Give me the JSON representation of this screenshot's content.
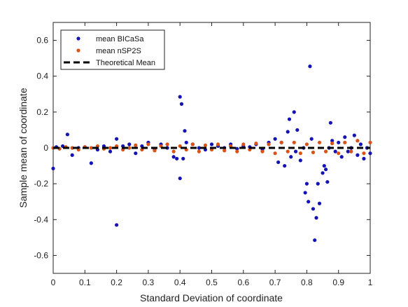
{
  "chart_data": {
    "type": "scatter",
    "xlabel": "Standard Deviation of coordinate",
    "ylabel": "Sample mean of coordinate",
    "xlim": [
      0,
      1
    ],
    "ylim": [
      -0.7,
      0.7
    ],
    "xticks": [
      "0",
      "0.1",
      "0.2",
      "0.3",
      "0.4",
      "0.5",
      "0.6",
      "0.7",
      "0.8",
      "0.9",
      "1"
    ],
    "yticks": [
      "-0.6",
      "-0.4",
      "-0.2",
      "0",
      "0.2",
      "0.4",
      "0.6"
    ],
    "grid": false,
    "legend_position": "top-left",
    "legend": [
      {
        "label": "mean BICaSa",
        "color": "#1414b4",
        "marker": "dot"
      },
      {
        "label": "mean nSP2S",
        "color": "#d95319",
        "marker": "dot"
      },
      {
        "label": "Theoretical Mean",
        "color": "#000000",
        "marker": "dashed-line"
      }
    ],
    "series": [
      {
        "name": "mean BICaSa",
        "color": "#1414b4",
        "points": [
          [
            0.0,
            -0.115
          ],
          [
            0.01,
            0.005
          ],
          [
            0.03,
            0.01
          ],
          [
            0.045,
            0.075
          ],
          [
            0.06,
            -0.04
          ],
          [
            0.08,
            0.0
          ],
          [
            0.1,
            0.005
          ],
          [
            0.12,
            -0.085
          ],
          [
            0.14,
            -0.01
          ],
          [
            0.16,
            0.01
          ],
          [
            0.18,
            -0.02
          ],
          [
            0.2,
            0.05
          ],
          [
            0.2,
            -0.43
          ],
          [
            0.22,
            0.01
          ],
          [
            0.24,
            0.02
          ],
          [
            0.26,
            -0.03
          ],
          [
            0.28,
            0.01
          ],
          [
            0.3,
            0.03
          ],
          [
            0.32,
            -0.01
          ],
          [
            0.34,
            0.02
          ],
          [
            0.36,
            0.0
          ],
          [
            0.38,
            -0.05
          ],
          [
            0.39,
            -0.06
          ],
          [
            0.4,
            0.285
          ],
          [
            0.405,
            0.245
          ],
          [
            0.4,
            -0.17
          ],
          [
            0.415,
            0.095
          ],
          [
            0.41,
            -0.06
          ],
          [
            0.42,
            0.03
          ],
          [
            0.44,
            0.02
          ],
          [
            0.46,
            0.0
          ],
          [
            0.48,
            -0.01
          ],
          [
            0.5,
            0.02
          ],
          [
            0.52,
            0.01
          ],
          [
            0.54,
            0.0
          ],
          [
            0.56,
            0.02
          ],
          [
            0.58,
            -0.005
          ],
          [
            0.6,
            0.01
          ],
          [
            0.62,
            0.005
          ],
          [
            0.64,
            0.02
          ],
          [
            0.66,
            -0.01
          ],
          [
            0.68,
            0.03
          ],
          [
            0.7,
            0.05
          ],
          [
            0.71,
            -0.08
          ],
          [
            0.72,
            0.03
          ],
          [
            0.73,
            -0.1
          ],
          [
            0.74,
            0.09
          ],
          [
            0.745,
            0.16
          ],
          [
            0.75,
            -0.05
          ],
          [
            0.76,
            0.2
          ],
          [
            0.765,
            -0.02
          ],
          [
            0.77,
            0.1
          ],
          [
            0.78,
            -0.07
          ],
          [
            0.79,
            0.0
          ],
          [
            0.795,
            -0.25
          ],
          [
            0.8,
            -0.2
          ],
          [
            0.805,
            -0.3
          ],
          [
            0.81,
            0.455
          ],
          [
            0.815,
            0.05
          ],
          [
            0.82,
            -0.34
          ],
          [
            0.825,
            -0.515
          ],
          [
            0.83,
            -0.39
          ],
          [
            0.835,
            -0.2
          ],
          [
            0.84,
            -0.31
          ],
          [
            0.85,
            -0.14
          ],
          [
            0.855,
            -0.1
          ],
          [
            0.86,
            -0.12
          ],
          [
            0.865,
            -0.19
          ],
          [
            0.87,
            0.0
          ],
          [
            0.875,
            0.14
          ],
          [
            0.88,
            0.04
          ],
          [
            0.89,
            -0.02
          ],
          [
            0.9,
            0.03
          ],
          [
            0.91,
            -0.05
          ],
          [
            0.92,
            0.06
          ],
          [
            0.93,
            -0.02
          ],
          [
            0.94,
            0.0
          ],
          [
            0.95,
            0.07
          ],
          [
            0.96,
            -0.04
          ],
          [
            0.97,
            0.02
          ],
          [
            0.98,
            -0.06
          ],
          [
            0.99,
            0.0
          ],
          [
            1.0,
            -0.03
          ]
        ]
      },
      {
        "name": "mean nSP2S",
        "color": "#d95319",
        "points": [
          [
            0.0,
            0.0
          ],
          [
            0.02,
            -0.005
          ],
          [
            0.04,
            0.005
          ],
          [
            0.06,
            0.0
          ],
          [
            0.08,
            -0.01
          ],
          [
            0.1,
            0.005
          ],
          [
            0.12,
            0.0
          ],
          [
            0.14,
            0.01
          ],
          [
            0.16,
            -0.005
          ],
          [
            0.18,
            0.0
          ],
          [
            0.2,
            0.01
          ],
          [
            0.22,
            -0.01
          ],
          [
            0.24,
            0.0
          ],
          [
            0.26,
            0.015
          ],
          [
            0.28,
            -0.01
          ],
          [
            0.3,
            0.02
          ],
          [
            0.32,
            -0.015
          ],
          [
            0.34,
            0.01
          ],
          [
            0.36,
            0.02
          ],
          [
            0.38,
            -0.02
          ],
          [
            0.4,
            0.01
          ],
          [
            0.42,
            -0.01
          ],
          [
            0.44,
            0.02
          ],
          [
            0.46,
            -0.02
          ],
          [
            0.48,
            0.015
          ],
          [
            0.5,
            -0.01
          ],
          [
            0.52,
            0.02
          ],
          [
            0.54,
            -0.015
          ],
          [
            0.56,
            0.01
          ],
          [
            0.58,
            -0.02
          ],
          [
            0.6,
            0.02
          ],
          [
            0.62,
            -0.01
          ],
          [
            0.64,
            0.025
          ],
          [
            0.66,
            -0.02
          ],
          [
            0.68,
            0.02
          ],
          [
            0.7,
            -0.03
          ],
          [
            0.72,
            0.03
          ],
          [
            0.74,
            -0.02
          ],
          [
            0.76,
            0.03
          ],
          [
            0.78,
            -0.03
          ],
          [
            0.8,
            0.02
          ],
          [
            0.82,
            -0.025
          ],
          [
            0.84,
            0.03
          ],
          [
            0.86,
            -0.02
          ],
          [
            0.88,
            0.025
          ],
          [
            0.9,
            -0.03
          ],
          [
            0.92,
            0.03
          ],
          [
            0.94,
            -0.02
          ],
          [
            0.96,
            0.04
          ],
          [
            0.98,
            -0.03
          ],
          [
            1.0,
            0.03
          ]
        ]
      },
      {
        "name": "Theoretical Mean",
        "color": "#000000",
        "line": [
          [
            0,
            0
          ],
          [
            1,
            0
          ]
        ]
      }
    ]
  }
}
